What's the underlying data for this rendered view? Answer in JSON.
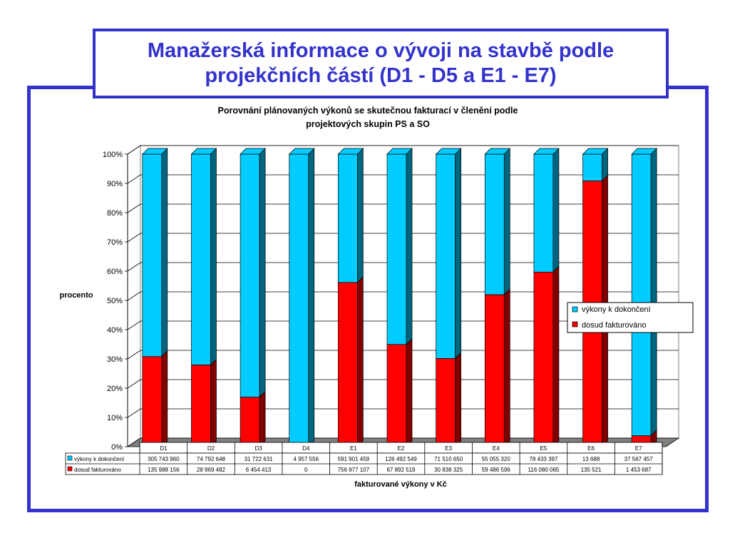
{
  "slide": {
    "title_line1": "Manažerská informace o vývoji na stavbě podle",
    "title_line2": "projekčních částí (D1 - D5 a E1 - E7)"
  },
  "colors": {
    "frame": "#3333cc",
    "series_upper": "#00ccff",
    "series_lower": "#ff0000",
    "series_upper_side": "#006680",
    "series_lower_side": "#800000",
    "floor": "#808080"
  },
  "chart_data": {
    "type": "bar",
    "stacked": "percent",
    "three_d": true,
    "title_line1": "Porovnání plánovaných výkonů se skutečnou fakturací v členění podle",
    "title_line2": "projektových skupin PS a SO",
    "ylabel": "procento",
    "xlabel": "fakturované výkony v Kč",
    "ylim": [
      0,
      100
    ],
    "yticks": [
      "0%",
      "10%",
      "20%",
      "30%",
      "40%",
      "50%",
      "60%",
      "70%",
      "80%",
      "90%",
      "100%"
    ],
    "grid": true,
    "legend_position": "right",
    "categories": [
      "D1",
      "D2",
      "D3",
      "D4",
      "E1",
      "E2",
      "E3",
      "E4",
      "E5",
      "E6",
      "E7"
    ],
    "series": [
      {
        "name": "výkony k dokončení",
        "values": [
          305743960,
          74792648,
          31722631,
          4957556,
          591901459,
          126492549,
          71510650,
          55055320,
          78433397,
          13688,
          37567457
        ],
        "labels": [
          "305 743 960",
          "74 792 648",
          "31 722 631",
          "4 957 556",
          "591 901 459",
          "126 492 549",
          "71 510 650",
          "55 055 320",
          "78 433 397",
          "13 688",
          "37 567 457"
        ]
      },
      {
        "name": "dosud fakturováno",
        "values": [
          135988156,
          28969482,
          6454413,
          0,
          756977107,
          67892519,
          30838325,
          59486596,
          116080065,
          135521,
          1453687
        ],
        "labels": [
          "135 988 156",
          "28 969 482",
          "6 454 413",
          "0",
          "756 977 107",
          "67 892 519",
          "30 838 325",
          "59 486 596",
          "116 080 065",
          "135 521",
          "1 453 687"
        ]
      }
    ]
  }
}
